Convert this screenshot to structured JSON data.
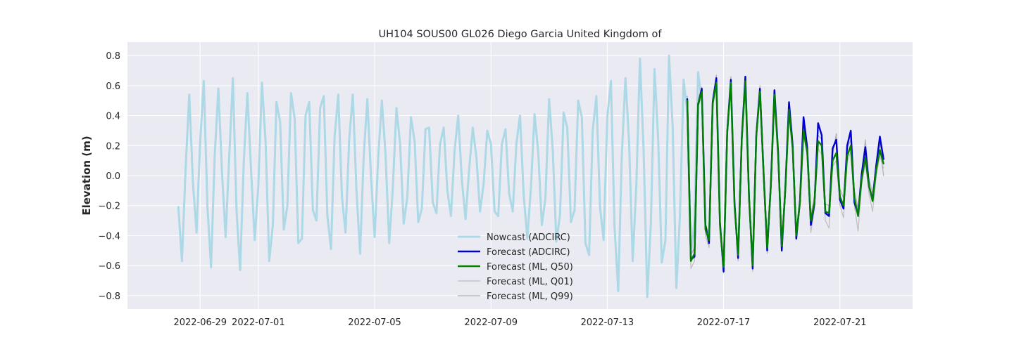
{
  "chart_data": {
    "type": "line",
    "title": "UH104 SOUS00 GL026 Diego Garcia United Kingdom of",
    "xlabel": "",
    "ylabel": "Elevation (m)",
    "xlim": [
      "2022-06-26T12:00",
      "2022-07-23T12:00"
    ],
    "ylim": [
      -0.89,
      0.89
    ],
    "xticks": [
      "2022-06-29",
      "2022-07-01",
      "2022-07-05",
      "2022-07-09",
      "2022-07-13",
      "2022-07-17",
      "2022-07-21"
    ],
    "yticks": [
      -0.8,
      -0.6,
      -0.4,
      -0.2,
      0.0,
      0.2,
      0.4,
      0.6,
      0.8
    ],
    "ytick_labels": [
      "−0.8",
      "−0.6",
      "−0.4",
      "−0.2",
      "0.0",
      "0.2",
      "0.4",
      "0.6",
      "0.8"
    ],
    "grid": true,
    "legend_position": "lower-center",
    "background": "#eaeaf2",
    "series": [
      {
        "name": "Nowcast (ADCIRC)",
        "color": "#add8e6",
        "start": "2022-06-28T06:00",
        "step_hours": 3,
        "values": [
          -0.21,
          -0.57,
          0.05,
          0.54,
          -0.04,
          -0.38,
          0.22,
          0.63,
          -0.21,
          -0.61,
          0.13,
          0.58,
          0.03,
          -0.41,
          0.12,
          0.65,
          -0.23,
          -0.63,
          0.09,
          0.55,
          0.04,
          -0.43,
          -0.07,
          0.62,
          0.22,
          -0.57,
          -0.33,
          0.49,
          0.36,
          -0.36,
          -0.2,
          0.55,
          0.38,
          -0.45,
          -0.42,
          0.4,
          0.49,
          -0.23,
          -0.3,
          0.45,
          0.53,
          -0.27,
          -0.49,
          0.26,
          0.54,
          -0.14,
          -0.38,
          0.24,
          0.54,
          -0.1,
          -0.52,
          0.13,
          0.51,
          -0.01,
          -0.41,
          0.13,
          0.5,
          0.14,
          -0.45,
          -0.09,
          0.45,
          0.21,
          -0.32,
          -0.14,
          0.39,
          0.23,
          -0.31,
          -0.22,
          0.31,
          0.32,
          -0.18,
          -0.25,
          0.21,
          0.32,
          -0.1,
          -0.27,
          0.17,
          0.4,
          -0.03,
          -0.29,
          0.04,
          0.32,
          0.12,
          -0.24,
          -0.05,
          0.3,
          0.21,
          -0.24,
          -0.27,
          0.21,
          0.31,
          -0.12,
          -0.24,
          0.21,
          0.4,
          -0.13,
          -0.42,
          -0.08,
          0.41,
          0.16,
          -0.33,
          -0.15,
          0.51,
          0.17,
          -0.44,
          -0.26,
          0.42,
          0.32,
          -0.31,
          -0.23,
          0.5,
          0.39,
          -0.45,
          -0.53,
          0.3,
          0.53,
          -0.21,
          -0.43,
          0.39,
          0.63,
          -0.34,
          -0.77,
          0.13,
          0.65,
          0.22,
          -0.57,
          -0.06,
          0.78,
          0.17,
          -0.81,
          -0.32,
          0.71,
          0.24,
          -0.58,
          -0.43,
          0.8,
          0.32,
          -0.75,
          -0.27,
          0.64,
          0.42,
          -0.52,
          -0.3,
          0.69,
          0.5
        ]
      },
      {
        "name": "Forecast (ADCIRC)",
        "color": "#0000cd",
        "start": "2022-07-15T18:00",
        "step_hours": 3,
        "values": [
          0.51,
          -0.56,
          -0.54,
          0.47,
          0.58,
          -0.33,
          -0.45,
          0.49,
          0.65,
          -0.31,
          -0.64,
          0.29,
          0.64,
          -0.18,
          -0.55,
          0.25,
          0.66,
          -0.14,
          -0.62,
          0.27,
          0.58,
          0.02,
          -0.5,
          -0.06,
          0.57,
          0.16,
          -0.5,
          -0.08,
          0.49,
          0.2,
          -0.42,
          -0.17,
          0.39,
          0.19,
          -0.33,
          -0.19,
          0.35,
          0.27,
          -0.25,
          -0.27,
          0.18,
          0.24,
          -0.16,
          -0.22,
          0.2,
          0.3,
          -0.18,
          -0.26,
          0.01,
          0.19,
          -0.07,
          -0.16,
          0.07,
          0.26,
          0.11
        ]
      },
      {
        "name": "Forecast (ML, Q50)",
        "color": "#008000",
        "start": "2022-07-15T18:00",
        "step_hours": 3,
        "values": [
          0.5,
          -0.57,
          -0.52,
          0.48,
          0.56,
          -0.36,
          -0.43,
          0.48,
          0.62,
          -0.33,
          -0.61,
          0.28,
          0.62,
          -0.2,
          -0.53,
          0.24,
          0.63,
          -0.15,
          -0.6,
          0.26,
          0.56,
          0.01,
          -0.48,
          -0.07,
          0.54,
          0.14,
          -0.47,
          -0.09,
          0.44,
          0.18,
          -0.4,
          -0.18,
          0.3,
          0.16,
          -0.3,
          -0.18,
          0.23,
          0.2,
          -0.24,
          -0.25,
          0.1,
          0.15,
          -0.14,
          -0.2,
          0.13,
          0.2,
          -0.15,
          -0.27,
          -0.02,
          0.12,
          -0.07,
          -0.17,
          0.04,
          0.17,
          0.08
        ]
      },
      {
        "name": "Forecast (ML, Q01)",
        "color": "#bdbdbd",
        "start": "2022-07-15T18:00",
        "step_hours": 3,
        "values": [
          0.48,
          -0.62,
          -0.57,
          0.46,
          0.53,
          -0.4,
          -0.48,
          0.46,
          0.6,
          -0.37,
          -0.65,
          0.26,
          0.6,
          -0.23,
          -0.57,
          0.22,
          0.61,
          -0.18,
          -0.64,
          0.24,
          0.54,
          -0.02,
          -0.52,
          -0.09,
          0.52,
          0.11,
          -0.51,
          -0.12,
          0.42,
          0.15,
          -0.43,
          -0.21,
          0.27,
          0.13,
          -0.38,
          -0.22,
          0.18,
          0.14,
          -0.3,
          -0.35,
          0.06,
          0.1,
          -0.2,
          -0.28,
          0.09,
          0.16,
          -0.2,
          -0.37,
          -0.06,
          0.08,
          -0.12,
          -0.24,
          0.0,
          0.13,
          0.05
        ]
      },
      {
        "name": "Forecast (ML, Q99)",
        "color": "#b0b0b0",
        "start": "2022-07-15T18:00",
        "step_hours": 3,
        "values": [
          0.53,
          -0.53,
          -0.48,
          0.51,
          0.59,
          -0.32,
          -0.39,
          0.51,
          0.67,
          -0.29,
          -0.57,
          0.31,
          0.66,
          -0.16,
          -0.49,
          0.27,
          0.66,
          -0.11,
          -0.56,
          0.29,
          0.6,
          0.04,
          -0.44,
          -0.04,
          0.57,
          0.17,
          -0.43,
          -0.06,
          0.47,
          0.21,
          -0.36,
          -0.15,
          0.34,
          0.19,
          -0.26,
          -0.14,
          0.27,
          0.24,
          -0.19,
          -0.2,
          0.14,
          0.28,
          -0.09,
          -0.15,
          0.18,
          0.24,
          -0.1,
          -0.22,
          0.02,
          0.24,
          -0.02,
          -0.12,
          0.08,
          0.21,
          0.0
        ]
      }
    ]
  }
}
